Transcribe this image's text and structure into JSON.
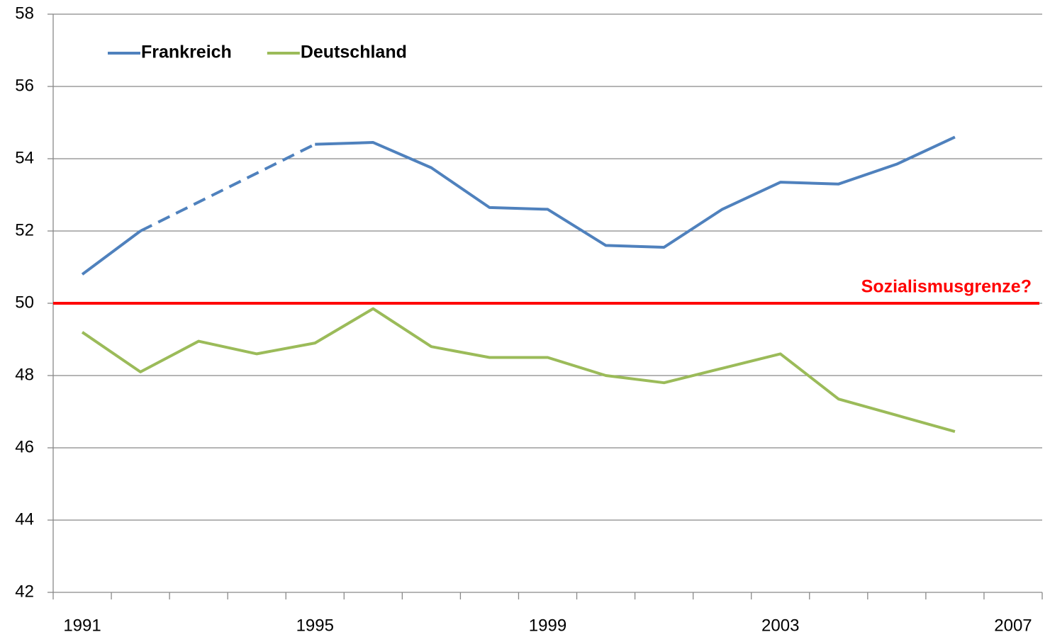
{
  "chart_data": {
    "type": "line",
    "categories": [
      "1991",
      null,
      null,
      null,
      "1995",
      null,
      null,
      null,
      "1999",
      null,
      null,
      null,
      "2003",
      null,
      null,
      null,
      "2007"
    ],
    "series": [
      {
        "name": "Frankreich",
        "color": "#4f81bd",
        "dashed_from": 1,
        "dashed_to": 4,
        "values": [
          50.8,
          52.0,
          52.8,
          53.6,
          54.4,
          54.45,
          53.75,
          52.65,
          52.6,
          51.6,
          51.55,
          52.6,
          53.35,
          53.3,
          53.85,
          54.6,
          null
        ]
      },
      {
        "name": "Deutschland",
        "color": "#9bbb59",
        "values": [
          49.2,
          48.1,
          48.95,
          48.6,
          48.9,
          49.85,
          48.8,
          48.5,
          48.5,
          48.0,
          47.8,
          48.2,
          48.6,
          47.35,
          46.9,
          46.45,
          null
        ]
      }
    ],
    "reference_line": {
      "value": 50,
      "label": "Sozialismusgrenze?",
      "color": "#ff0000"
    },
    "ylim": [
      42,
      58
    ],
    "yticks": [
      42,
      44,
      46,
      48,
      50,
      52,
      54,
      56,
      58
    ],
    "grid": true,
    "legend": "top-left"
  }
}
